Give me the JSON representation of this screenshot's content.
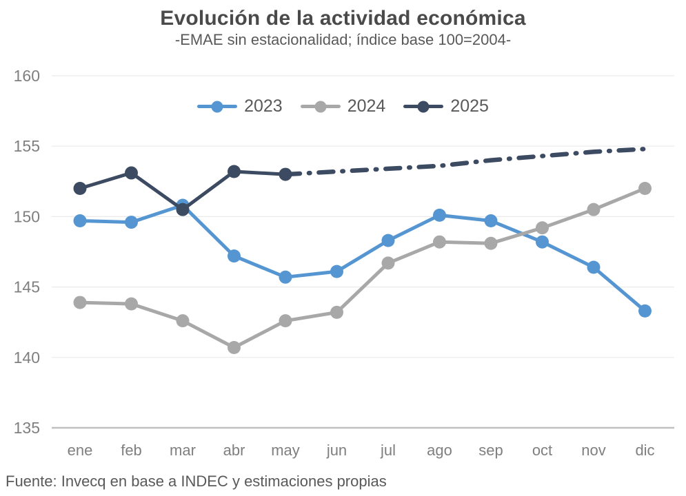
{
  "header": {
    "title": "Evolución de la actividad económica",
    "subtitle": "-EMAE sin estacionalidad; índice base 100=2004-"
  },
  "legend": {
    "items": [
      {
        "label": "2023",
        "color": "#5596D2"
      },
      {
        "label": "2024",
        "color": "#A8A8A8"
      },
      {
        "label": "2025",
        "color": "#3C4B61"
      }
    ]
  },
  "footer": {
    "source": "Fuente: Invecq en base a INDEC y estimaciones propias"
  },
  "chart_data": {
    "type": "line",
    "title": "Evolución de la actividad económica",
    "subtitle": "-EMAE sin estacionalidad; índice base 100=2004-",
    "categories": [
      "ene",
      "feb",
      "mar",
      "abr",
      "may",
      "jun",
      "jul",
      "ago",
      "sep",
      "oct",
      "nov",
      "dic"
    ],
    "series": [
      {
        "name": "2023",
        "color": "#5596D2",
        "style": "solid",
        "markers": true,
        "values": [
          149.7,
          149.6,
          150.8,
          147.2,
          145.7,
          146.1,
          148.3,
          150.1,
          149.7,
          148.2,
          146.4,
          143.3
        ]
      },
      {
        "name": "2024",
        "color": "#A8A8A8",
        "style": "solid",
        "markers": true,
        "values": [
          143.9,
          143.8,
          142.6,
          140.7,
          142.6,
          143.2,
          146.7,
          148.2,
          148.1,
          149.2,
          150.5,
          152.0
        ]
      },
      {
        "name": "2025",
        "color": "#3C4B61",
        "style": "solid",
        "markers": true,
        "values": [
          152.0,
          153.1,
          150.5,
          153.2,
          153.0,
          null,
          null,
          null,
          null,
          null,
          null,
          null
        ]
      },
      {
        "name": "2025 estimación",
        "color": "#3C4B61",
        "style": "dash-dot",
        "markers": false,
        "values": [
          null,
          null,
          null,
          null,
          153.0,
          153.2,
          153.4,
          153.6,
          154.0,
          154.3,
          154.6,
          154.8
        ]
      }
    ],
    "ylabel": "",
    "xlabel": "",
    "ylim": [
      135,
      160
    ],
    "ytick_step": 5,
    "yticks": [
      135,
      140,
      145,
      150,
      155,
      160
    ],
    "grid": true,
    "legend_position": "top-center",
    "palette": {
      "grid_line": "#EAEAEA",
      "axis_line": "#C0C0C0",
      "tick_text": "#7F7F7F",
      "title_text": "#4A4A4A",
      "body_text": "#595959"
    }
  }
}
